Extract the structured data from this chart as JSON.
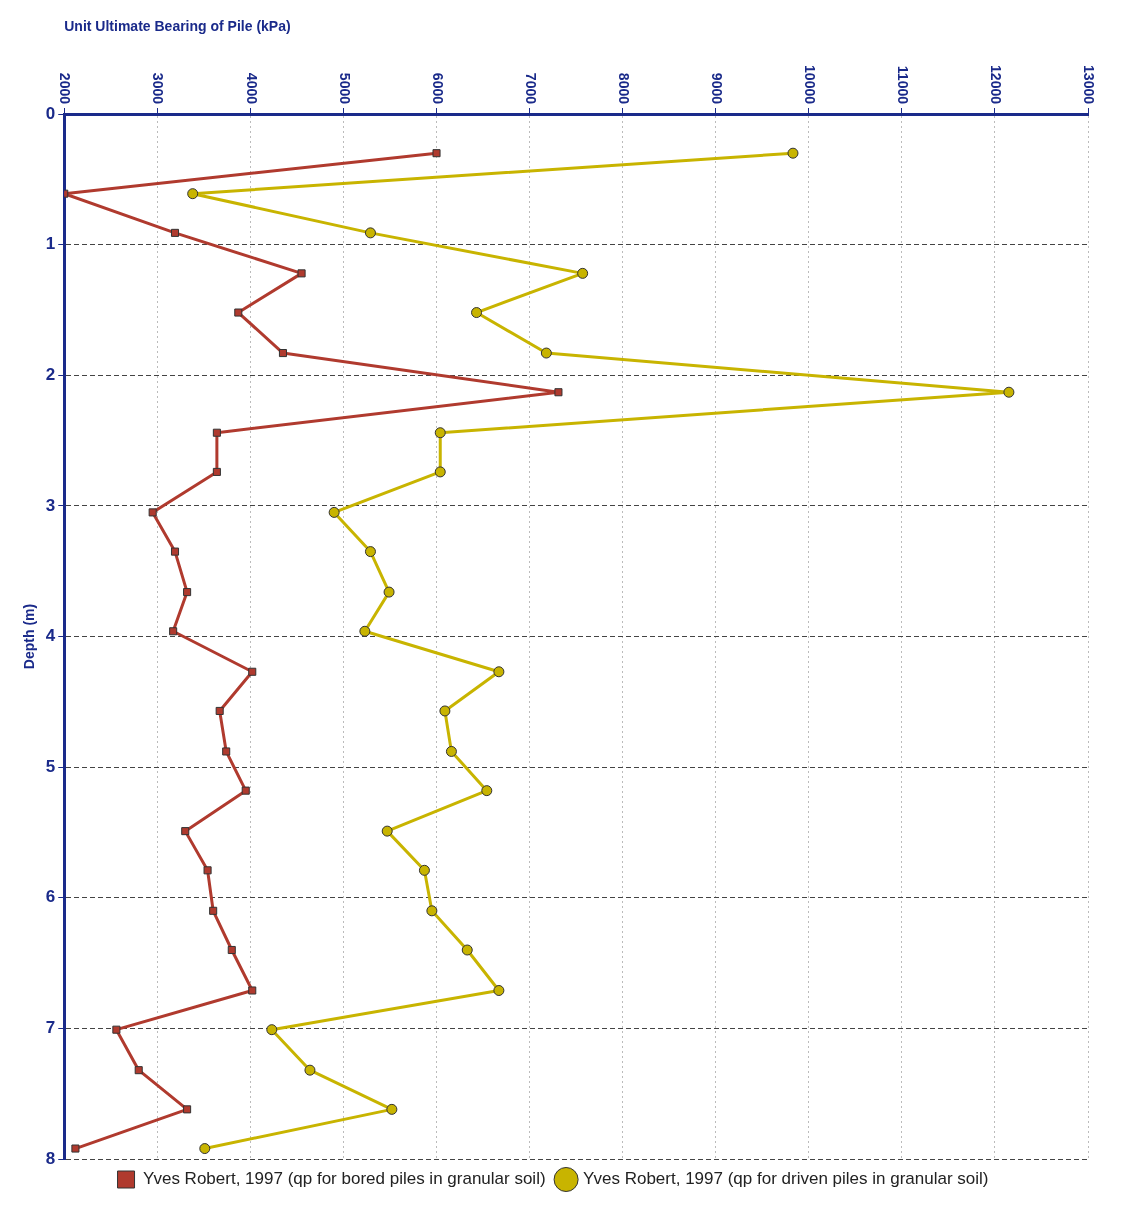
{
  "chart_data": {
    "type": "line",
    "xlabel": "Unit Ultimate Bearing of Pile (kPa)",
    "ylabel": "Depth (m)",
    "xlim": [
      2000,
      13000
    ],
    "xticks": [
      2000,
      3000,
      4000,
      5000,
      6000,
      7000,
      8000,
      9000,
      10000,
      11000,
      12000,
      13000
    ],
    "ylim": [
      8,
      0
    ],
    "yticks": [
      0,
      1,
      2,
      3,
      4,
      5,
      6,
      7,
      8
    ],
    "grid": true,
    "legend": "bottom",
    "line_style": "solid",
    "series": [
      {
        "name": "Yves Robert, 1997 (qp for bored piles in granular soil)",
        "color": "#b03a2e",
        "marker": "square",
        "x": [
          6000,
          2000,
          3190,
          4550,
          3870,
          4350,
          7310,
          3640,
          3640,
          2950,
          3190,
          3320,
          3170,
          4020,
          3670,
          3740,
          3950,
          3300,
          3540,
          3600,
          3800,
          4020,
          2560,
          2800,
          3320,
          2120
        ],
        "values": [
          0.3,
          0.61,
          0.91,
          1.22,
          1.52,
          1.83,
          2.13,
          2.44,
          2.74,
          3.05,
          3.35,
          3.66,
          3.96,
          4.27,
          4.57,
          4.88,
          5.18,
          5.49,
          5.79,
          6.1,
          6.4,
          6.71,
          7.01,
          7.32,
          7.62,
          7.92
        ]
      },
      {
        "name": "Yves Robert, 1997 (qp for driven piles in granular soil)",
        "color": "#c8b400",
        "marker": "circle",
        "x": [
          9830,
          3380,
          5290,
          7570,
          6430,
          7180,
          12150,
          6040,
          6040,
          4900,
          5290,
          5490,
          5230,
          6670,
          6090,
          6160,
          6540,
          5470,
          5870,
          5950,
          6330,
          6670,
          4230,
          4640,
          5520,
          3510
        ],
        "values": [
          0.3,
          0.61,
          0.91,
          1.22,
          1.52,
          1.83,
          2.13,
          2.44,
          2.74,
          3.05,
          3.35,
          3.66,
          3.96,
          4.27,
          4.57,
          4.88,
          5.18,
          5.49,
          5.79,
          6.1,
          6.4,
          6.71,
          7.01,
          7.32,
          7.62,
          7.92
        ]
      }
    ]
  }
}
